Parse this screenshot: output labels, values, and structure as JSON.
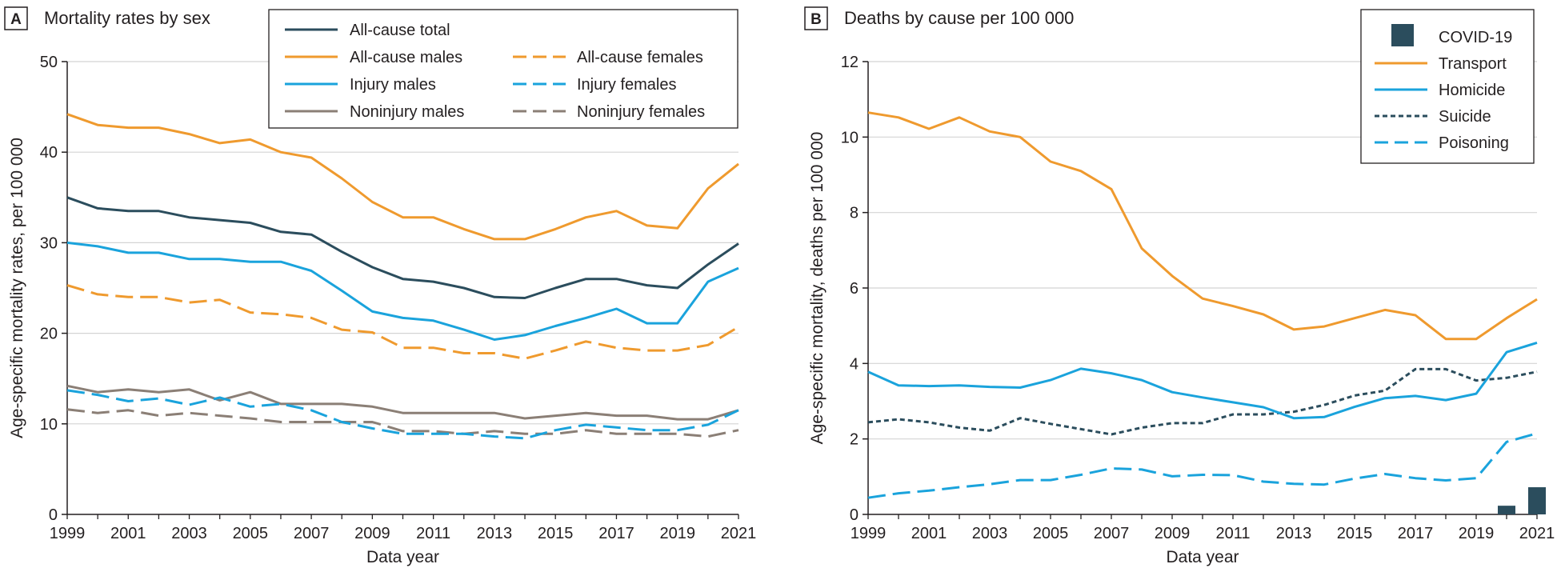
{
  "panels": [
    {
      "letter": "A",
      "title": "Mortality rates by sex"
    },
    {
      "letter": "B",
      "title": "Deaths by cause per 100 000"
    }
  ],
  "colors": {
    "navy": "#2b4d5d",
    "orange": "#ef9a2e",
    "blue": "#1aa3dc",
    "gray": "#8b7f76",
    "grid": "#d4d4d4",
    "axis": "#231f20"
  },
  "chart_data": [
    {
      "type": "line",
      "title": "Mortality rates by sex",
      "xlabel": "Data year",
      "ylabel": "Age-specific mortality rates, per 100 000",
      "xlim": [
        1999,
        2021
      ],
      "ylim": [
        0,
        50
      ],
      "xticks": [
        1999,
        2001,
        2003,
        2005,
        2007,
        2009,
        2011,
        2013,
        2015,
        2017,
        2019,
        2021
      ],
      "yticks": [
        0,
        10,
        20,
        30,
        40,
        50
      ],
      "grid": "horizontal",
      "legend": "top-center",
      "x": [
        1999,
        2000,
        2001,
        2002,
        2003,
        2004,
        2005,
        2006,
        2007,
        2008,
        2009,
        2010,
        2011,
        2012,
        2013,
        2014,
        2015,
        2016,
        2017,
        2018,
        2019,
        2020,
        2021
      ],
      "series": [
        {
          "name": "All-cause total",
          "color": "#2b4d5d",
          "dash": "solid",
          "values": [
            35.0,
            33.8,
            33.5,
            33.5,
            32.8,
            32.5,
            32.2,
            31.2,
            30.9,
            29.0,
            27.3,
            26.0,
            25.7,
            25.0,
            24.0,
            23.9,
            25.0,
            26.0,
            26.0,
            25.3,
            25.0,
            27.6,
            29.9
          ]
        },
        {
          "name": "All-cause males",
          "color": "#ef9a2e",
          "dash": "solid",
          "values": [
            44.2,
            43.0,
            42.7,
            42.7,
            42.0,
            41.0,
            41.4,
            40.0,
            39.4,
            37.1,
            34.5,
            32.8,
            32.8,
            31.5,
            30.4,
            30.4,
            31.5,
            32.8,
            33.5,
            31.9,
            31.6,
            36.0,
            38.7
          ]
        },
        {
          "name": "All-cause females",
          "color": "#ef9a2e",
          "dash": "dashed",
          "values": [
            25.3,
            24.3,
            24.0,
            24.0,
            23.4,
            23.7,
            22.3,
            22.1,
            21.7,
            20.4,
            20.1,
            18.4,
            18.4,
            17.8,
            17.8,
            17.2,
            18.1,
            19.1,
            18.4,
            18.1,
            18.1,
            18.7,
            20.7
          ]
        },
        {
          "name": "Injury males",
          "color": "#1aa3dc",
          "dash": "solid",
          "values": [
            30.0,
            29.6,
            28.9,
            28.9,
            28.2,
            28.2,
            27.9,
            27.9,
            26.9,
            24.7,
            22.4,
            21.7,
            21.4,
            20.4,
            19.3,
            19.8,
            20.8,
            21.7,
            22.7,
            21.1,
            21.1,
            25.7,
            27.2
          ]
        },
        {
          "name": "Injury females",
          "color": "#1aa3dc",
          "dash": "dashed",
          "values": [
            13.7,
            13.2,
            12.5,
            12.8,
            12.1,
            12.9,
            11.9,
            12.2,
            11.5,
            10.2,
            9.5,
            8.9,
            8.9,
            8.9,
            8.6,
            8.4,
            9.3,
            9.9,
            9.6,
            9.3,
            9.3,
            9.9,
            11.5
          ]
        },
        {
          "name": "Noninjury males",
          "color": "#8b7f76",
          "dash": "solid",
          "values": [
            14.2,
            13.5,
            13.8,
            13.5,
            13.8,
            12.6,
            13.5,
            12.2,
            12.2,
            12.2,
            11.9,
            11.2,
            11.2,
            11.2,
            11.2,
            10.6,
            10.9,
            11.2,
            10.9,
            10.9,
            10.5,
            10.5,
            11.5
          ]
        },
        {
          "name": "Noninjury females",
          "color": "#8b7f76",
          "dash": "dashed",
          "values": [
            11.6,
            11.2,
            11.5,
            10.9,
            11.2,
            10.9,
            10.6,
            10.2,
            10.2,
            10.2,
            10.2,
            9.2,
            9.2,
            8.9,
            9.2,
            8.9,
            8.9,
            9.3,
            8.9,
            8.9,
            8.9,
            8.6,
            9.3
          ]
        }
      ]
    },
    {
      "type": "line",
      "title": "Deaths by cause per 100 000",
      "xlabel": "Data year",
      "ylabel": "Age-specific mortality, deaths per 100 000",
      "xlim": [
        1999,
        2021
      ],
      "ylim": [
        0,
        12
      ],
      "xticks": [
        1999,
        2001,
        2003,
        2005,
        2007,
        2009,
        2011,
        2013,
        2015,
        2017,
        2019,
        2021
      ],
      "yticks": [
        0,
        2,
        4,
        6,
        8,
        10,
        12
      ],
      "grid": "horizontal",
      "legend": "top-right",
      "x": [
        1999,
        2000,
        2001,
        2002,
        2003,
        2004,
        2005,
        2006,
        2007,
        2008,
        2009,
        2010,
        2011,
        2012,
        2013,
        2014,
        2015,
        2016,
        2017,
        2018,
        2019,
        2020,
        2021
      ],
      "bars": {
        "name": "COVID-19",
        "color": "#2b4d5d",
        "x": [
          2020,
          2021
        ],
        "values": [
          0.23,
          0.72
        ]
      },
      "series": [
        {
          "name": "Transport",
          "color": "#ef9a2e",
          "dash": "solid",
          "values": [
            10.65,
            10.52,
            10.22,
            10.52,
            10.15,
            10.0,
            9.35,
            9.1,
            8.62,
            7.05,
            6.32,
            5.72,
            5.52,
            5.3,
            4.9,
            4.98,
            5.2,
            5.42,
            5.28,
            4.65,
            4.65,
            5.2,
            5.7
          ]
        },
        {
          "name": "Homicide",
          "color": "#1aa3dc",
          "dash": "solid",
          "values": [
            3.78,
            3.42,
            3.4,
            3.42,
            3.38,
            3.36,
            3.56,
            3.86,
            3.74,
            3.56,
            3.24,
            3.1,
            2.97,
            2.84,
            2.55,
            2.58,
            2.85,
            3.08,
            3.14,
            3.03,
            3.2,
            4.3,
            4.55
          ]
        },
        {
          "name": "Suicide",
          "color": "#2b4d5d",
          "dash": "dotted",
          "values": [
            2.44,
            2.52,
            2.44,
            2.3,
            2.22,
            2.55,
            2.4,
            2.26,
            2.12,
            2.3,
            2.42,
            2.42,
            2.65,
            2.65,
            2.72,
            2.9,
            3.15,
            3.28,
            3.85,
            3.85,
            3.55,
            3.62,
            3.78
          ]
        },
        {
          "name": "Poisoning",
          "color": "#1aa3dc",
          "dash": "dashed",
          "values": [
            0.44,
            0.56,
            0.63,
            0.72,
            0.8,
            0.91,
            0.91,
            1.05,
            1.22,
            1.19,
            1.01,
            1.05,
            1.04,
            0.87,
            0.81,
            0.79,
            0.95,
            1.07,
            0.96,
            0.9,
            0.96,
            1.92,
            2.15
          ]
        }
      ]
    }
  ]
}
